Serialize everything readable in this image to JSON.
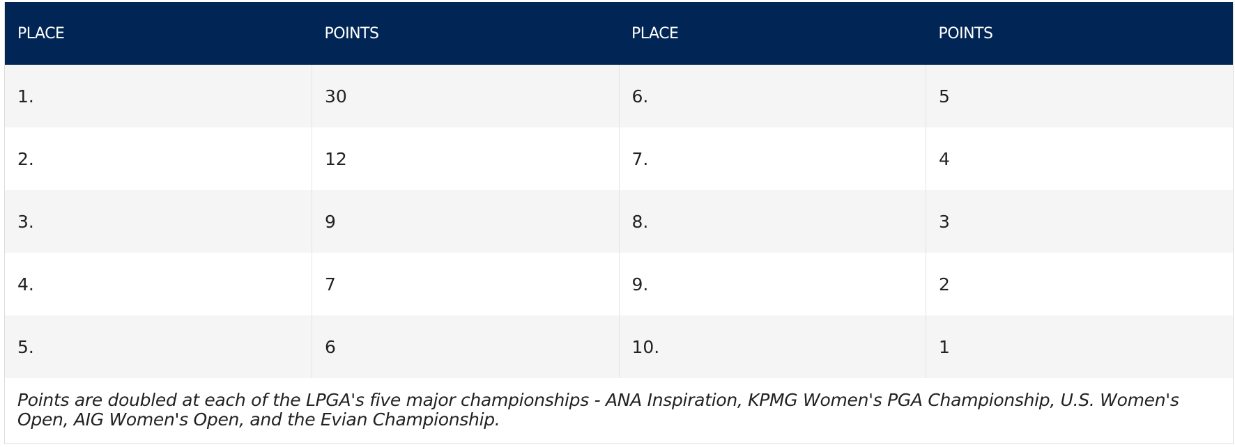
{
  "table": {
    "header": [
      "PLACE",
      "POINTS",
      "PLACE",
      "POINTS"
    ],
    "rows": [
      [
        "1.",
        "30",
        "6.",
        "5"
      ],
      [
        "2.",
        "12",
        "7.",
        "4"
      ],
      [
        "3.",
        "9",
        "8.",
        "3"
      ],
      [
        "4.",
        "7",
        "9.",
        "2"
      ],
      [
        "5.",
        "6",
        "10.",
        "1"
      ]
    ],
    "footnote": "Points are doubled at each of the LPGA's five major championships - ANA Inspiration, KPMG Women's PGA Championship, U.S. Women's Open, AIG Women's Open, and the Evian Championship."
  }
}
